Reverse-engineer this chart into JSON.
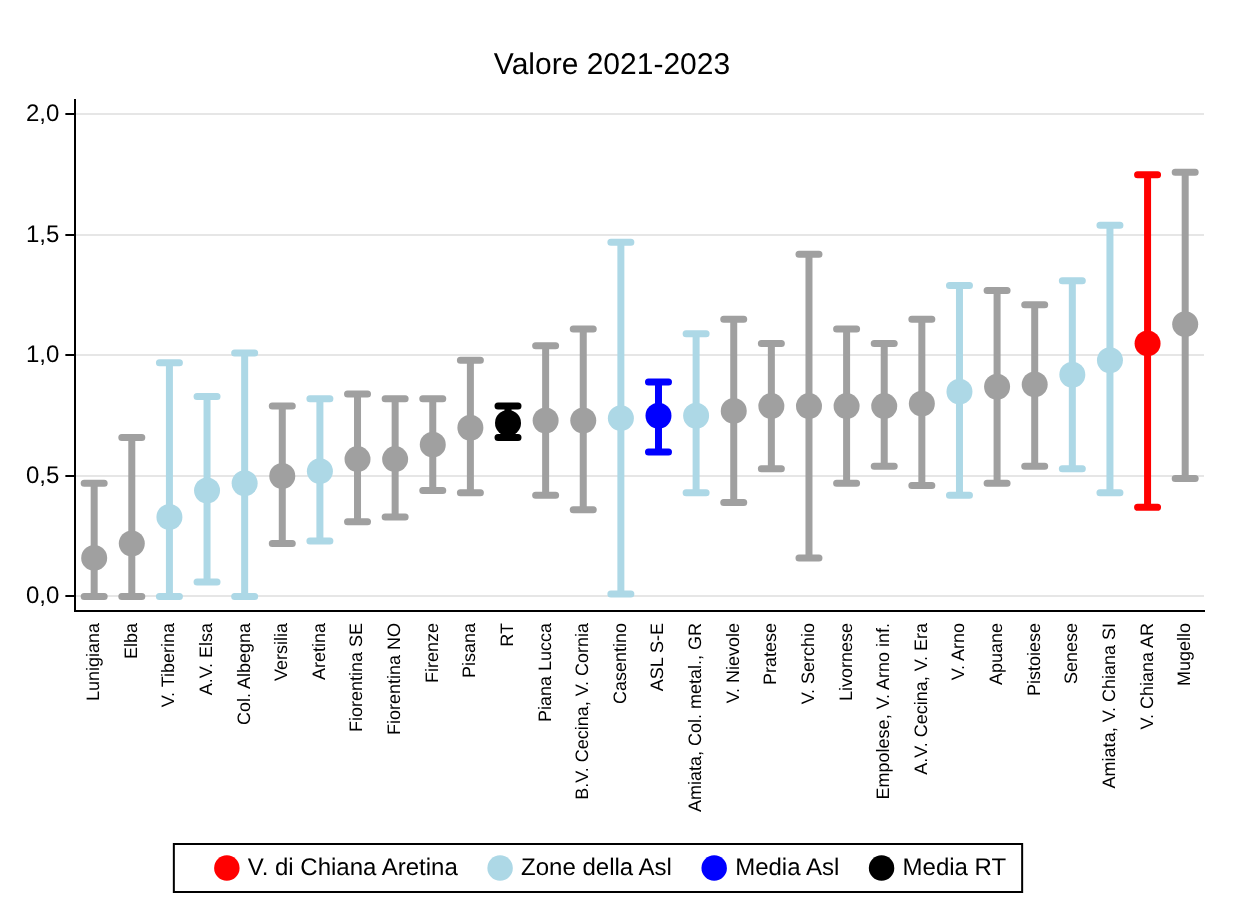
{
  "chart_data": {
    "type": "scatter",
    "title": "Valore 2021-2023",
    "categories": [
      "Lunigiana",
      "Elba",
      "V. Tiberina",
      "A.V. Elsa",
      "Col. Albegna",
      "Versilia",
      "Aretina",
      "Fiorentina SE",
      "Fiorentina NO",
      "Firenze",
      "Pisana",
      "RT",
      "Piana Lucca",
      "B.V. Cecina, V. Cornia",
      "Casentino",
      "ASL S-E",
      "Amiata, Col. metal., GR",
      "V. Nievole",
      "Pratese",
      "V. Serchio",
      "Livornese",
      "Empolese, V. Arno inf.",
      "A.V. Cecina, V. Era",
      "V. Arno",
      "Apuane",
      "Pistoiese",
      "Senese",
      "Amiata, V. Chiana SI",
      "V. Chiana AR",
      "Mugello"
    ],
    "ylim": [
      -0.06,
      2.06
    ],
    "yticks": [
      {
        "value": 0,
        "label": "0,0"
      },
      {
        "value": 0.5,
        "label": "0,5"
      },
      {
        "value": 1,
        "label": "1,0"
      },
      {
        "value": 1.5,
        "label": "1,5"
      },
      {
        "value": 2,
        "label": "2,0"
      }
    ],
    "grid": "y",
    "legend": "bottom",
    "marker": "circle",
    "series": [
      {
        "color": "#a0a0a0",
        "values": [
          0.16,
          0.22,
          null,
          null,
          null,
          0.5,
          null,
          0.57,
          0.57,
          0.63,
          0.7,
          null,
          0.73,
          0.73,
          null,
          null,
          null,
          0.77,
          0.79,
          0.79,
          0.79,
          0.79,
          0.8,
          null,
          0.87,
          0.88,
          null,
          null,
          null,
          1.13
        ],
        "errors": [
          [
            0,
            0.47
          ],
          [
            0,
            0.66
          ],
          null,
          null,
          null,
          [
            0.22,
            0.79
          ],
          null,
          [
            0.31,
            0.84
          ],
          [
            0.33,
            0.82
          ],
          [
            0.44,
            0.82
          ],
          [
            0.43,
            0.98
          ],
          null,
          [
            0.42,
            1.04
          ],
          [
            0.36,
            1.11
          ],
          null,
          null,
          null,
          [
            0.39,
            1.15
          ],
          [
            0.53,
            1.05
          ],
          [
            0.16,
            1.42
          ],
          [
            0.47,
            1.11
          ],
          [
            0.54,
            1.05
          ],
          [
            0.46,
            1.15
          ],
          null,
          [
            0.47,
            1.27
          ],
          [
            0.54,
            1.21
          ],
          null,
          null,
          null,
          [
            0.49,
            1.76
          ]
        ]
      },
      {
        "name": "V. di Chiana Aretina",
        "color": "#ff0000",
        "values": [
          null,
          null,
          null,
          null,
          null,
          null,
          null,
          null,
          null,
          null,
          null,
          null,
          null,
          null,
          null,
          null,
          null,
          null,
          null,
          null,
          null,
          null,
          null,
          null,
          null,
          null,
          null,
          null,
          1.05,
          null
        ],
        "errors": [
          null,
          null,
          null,
          null,
          null,
          null,
          null,
          null,
          null,
          null,
          null,
          null,
          null,
          null,
          null,
          null,
          null,
          null,
          null,
          null,
          null,
          null,
          null,
          null,
          null,
          null,
          null,
          null,
          [
            0.37,
            1.75
          ],
          null
        ]
      },
      {
        "name": "Zone della Asl",
        "color": "#add8e6",
        "values": [
          null,
          null,
          0.33,
          0.44,
          0.47,
          null,
          0.52,
          null,
          null,
          null,
          null,
          null,
          null,
          null,
          0.74,
          null,
          0.75,
          null,
          null,
          null,
          null,
          null,
          null,
          0.85,
          null,
          null,
          0.92,
          0.98,
          null,
          null
        ],
        "errors": [
          null,
          null,
          [
            0,
            0.97
          ],
          [
            0.06,
            0.83
          ],
          [
            0,
            1.01
          ],
          null,
          [
            0.23,
            0.82
          ],
          null,
          null,
          null,
          null,
          null,
          null,
          null,
          [
            0.01,
            1.47
          ],
          null,
          [
            0.43,
            1.09
          ],
          null,
          null,
          null,
          null,
          null,
          null,
          [
            0.42,
            1.29
          ],
          null,
          null,
          [
            0.53,
            1.31
          ],
          [
            0.43,
            1.54
          ],
          null,
          null
        ]
      },
      {
        "name": "Media Asl",
        "color": "#0000ff",
        "values": [
          null,
          null,
          null,
          null,
          null,
          null,
          null,
          null,
          null,
          null,
          null,
          null,
          null,
          null,
          null,
          0.75,
          null,
          null,
          null,
          null,
          null,
          null,
          null,
          null,
          null,
          null,
          null,
          null,
          null,
          null
        ],
        "errors": [
          null,
          null,
          null,
          null,
          null,
          null,
          null,
          null,
          null,
          null,
          null,
          null,
          null,
          null,
          null,
          [
            0.6,
            0.89
          ],
          null,
          null,
          null,
          null,
          null,
          null,
          null,
          null,
          null,
          null,
          null,
          null,
          null,
          null
        ]
      },
      {
        "name": "Media RT",
        "color": "#000000",
        "values": [
          null,
          null,
          null,
          null,
          null,
          null,
          null,
          null,
          null,
          null,
          null,
          0.72,
          null,
          null,
          null,
          null,
          null,
          null,
          null,
          null,
          null,
          null,
          null,
          null,
          null,
          null,
          null,
          null,
          null,
          null
        ],
        "errors": [
          null,
          null,
          null,
          null,
          null,
          null,
          null,
          null,
          null,
          null,
          null,
          [
            0.66,
            0.79
          ],
          null,
          null,
          null,
          null,
          null,
          null,
          null,
          null,
          null,
          null,
          null,
          null,
          null,
          null,
          null,
          null,
          null,
          null
        ]
      }
    ]
  }
}
